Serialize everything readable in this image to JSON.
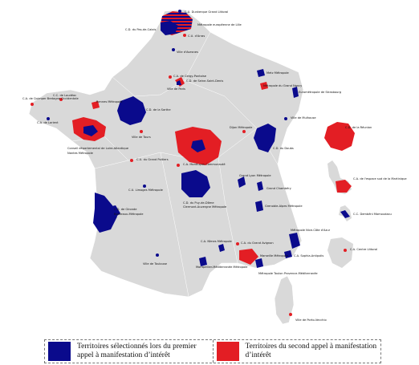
{
  "colors": {
    "first_call": "#0a0a8c",
    "second_call": "#e31e24",
    "land": "#d9d9d9",
    "border": "#ffffff"
  },
  "legend": {
    "first_call_label": "Territoires sélectionnés lors du premier appel à manifestation d’intérêt",
    "second_call_label": "Territoires du second appel à manifestation d’intérêt"
  },
  "labels": {
    "dunkerque": "C.U. Dunkerque Grand Littoral",
    "lille": "Métropole européenne de Lille",
    "pays_calais": "C.D. du Pas-de-Calais",
    "arras": "C.U. d'Arras",
    "avesnes": "Ville d'Avesnes",
    "quimper": "C.A. de Quimper Bretagne Occidentale",
    "loudeac": "C.C. de Loudéac",
    "lorient": "C.A. de Lorient",
    "rennes": "Rennes Métropole",
    "sarthe": "C.D. de la Sarthe",
    "cergy": "C.A. de Cergy-Pontoise",
    "seine_st_denis": "C.D. de Seine-Saint-Denis",
    "paris": "Ville de Paris",
    "metz": "Metz Métropole",
    "nancy": "Métropole du Grand Nancy",
    "strasbourg": "Eurométropole de Strasbourg",
    "mulhouse": "Ville de Mulhouse",
    "loire_atlantique": "Conseil départemental de Loire-Atlantique",
    "nantes": "Nantes Métropole",
    "tours": "Ville de Tours",
    "poitiers": "C.U. du Grand Poitiers",
    "montlucon": "C.A. Montluçon Communauté",
    "dijon": "Dijon Métropole",
    "doubs": "C.D. du Doubs",
    "reunion": "C.D. de la Réunion",
    "limoges": "C.U. Limoges Métropole",
    "puy_de_dome": "C.D. du Puy-de-Dôme",
    "clermont": "Clermont-Auvergne Métropole",
    "lyon": "Grand Lyon Métropole",
    "chambery": "Grand Chambéry",
    "martinique": "C.A. de l'espace sud de la Martinique",
    "grenoble": "Grenoble-Alpes Métropole",
    "gironde": "C.D. de Gironde",
    "bordeaux": "Bordeaux-Métropole",
    "dembeni": "C.C. Dembéni Mamoudzou",
    "nice": "Métropole Nice-Côte d'Azur",
    "nimes": "C.A. Nîmes Métropole",
    "avignon": "C.A. du Grand Avignon",
    "marseille": "Marseille Métropole",
    "sophia": "C.A. Sophia-Antipolis",
    "centre_littoral": "C.A. Centre Littoral",
    "toulouse": "Ville de Toulouse",
    "montpellier": "Montpellier-Méditerranée Métropole",
    "toulon": "Métropole Toulon Provence-Méditerranée",
    "porto_vecchio": "Ville de Porto-Vecchio"
  }
}
